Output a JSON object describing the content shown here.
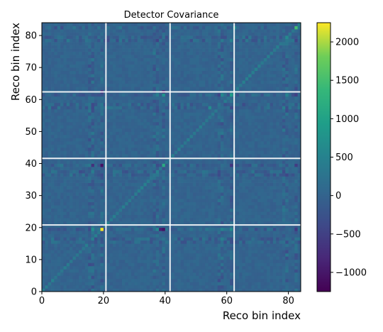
{
  "chart_data": {
    "type": "heatmap",
    "title": "Detector Covariance",
    "xlabel": "Reco bin index",
    "ylabel": "Reco bin index",
    "n_bins": 84,
    "xlim": [
      0,
      84
    ],
    "ylim": [
      0,
      84
    ],
    "x_ticks": [
      0,
      20,
      40,
      60,
      80
    ],
    "y_ticks": [
      0,
      10,
      20,
      30,
      40,
      50,
      60,
      70,
      80
    ],
    "block_boundaries": [
      20.8,
      41.6,
      62.4
    ],
    "colormap": "viridis",
    "color_range": [
      -1250,
      2250
    ],
    "colorbar_ticks": [
      -1000,
      -500,
      0,
      500,
      1000,
      1500,
      2000
    ],
    "colorbar_tick_labels": [
      "−1000",
      "−500",
      "0",
      "500",
      "1000",
      "1500",
      "2000"
    ],
    "background_value": 0,
    "noise_amplitude": 90,
    "hot_columns": [
      15,
      16,
      19,
      36,
      37,
      39,
      57,
      58,
      61,
      78,
      79,
      82
    ],
    "hot_column_amplitude": 260,
    "diagonal_value": 380,
    "notable_cells": [
      {
        "x": 19,
        "y": 19,
        "value": 2230
      },
      {
        "x": 39,
        "y": 39,
        "value": 1150
      },
      {
        "x": 19,
        "y": 39,
        "value": -1050
      },
      {
        "x": 39,
        "y": 19,
        "value": -1050
      },
      {
        "x": 38,
        "y": 19,
        "value": -900
      },
      {
        "x": 37,
        "y": 19,
        "value": 600
      },
      {
        "x": 16,
        "y": 19,
        "value": 700
      },
      {
        "x": 16,
        "y": 39,
        "value": -700
      },
      {
        "x": 61,
        "y": 61,
        "value": 950
      },
      {
        "x": 82,
        "y": 82,
        "value": 1500
      },
      {
        "x": 39,
        "y": 61,
        "value": 800
      },
      {
        "x": 39,
        "y": 62,
        "value": -850
      },
      {
        "x": 19,
        "y": 62,
        "value": -700
      },
      {
        "x": 61,
        "y": 19,
        "value": 650
      },
      {
        "x": 61,
        "y": 39,
        "value": -650
      },
      {
        "x": 82,
        "y": 19,
        "value": -600
      },
      {
        "x": 82,
        "y": 39,
        "value": -550
      },
      {
        "x": 82,
        "y": 61,
        "value": -500
      },
      {
        "x": 58,
        "y": 19,
        "value": 500
      },
      {
        "x": 58,
        "y": 61,
        "value": 600
      },
      {
        "x": 54,
        "y": 57,
        "value": 650
      },
      {
        "x": 62,
        "y": 82,
        "value": 700
      }
    ]
  }
}
